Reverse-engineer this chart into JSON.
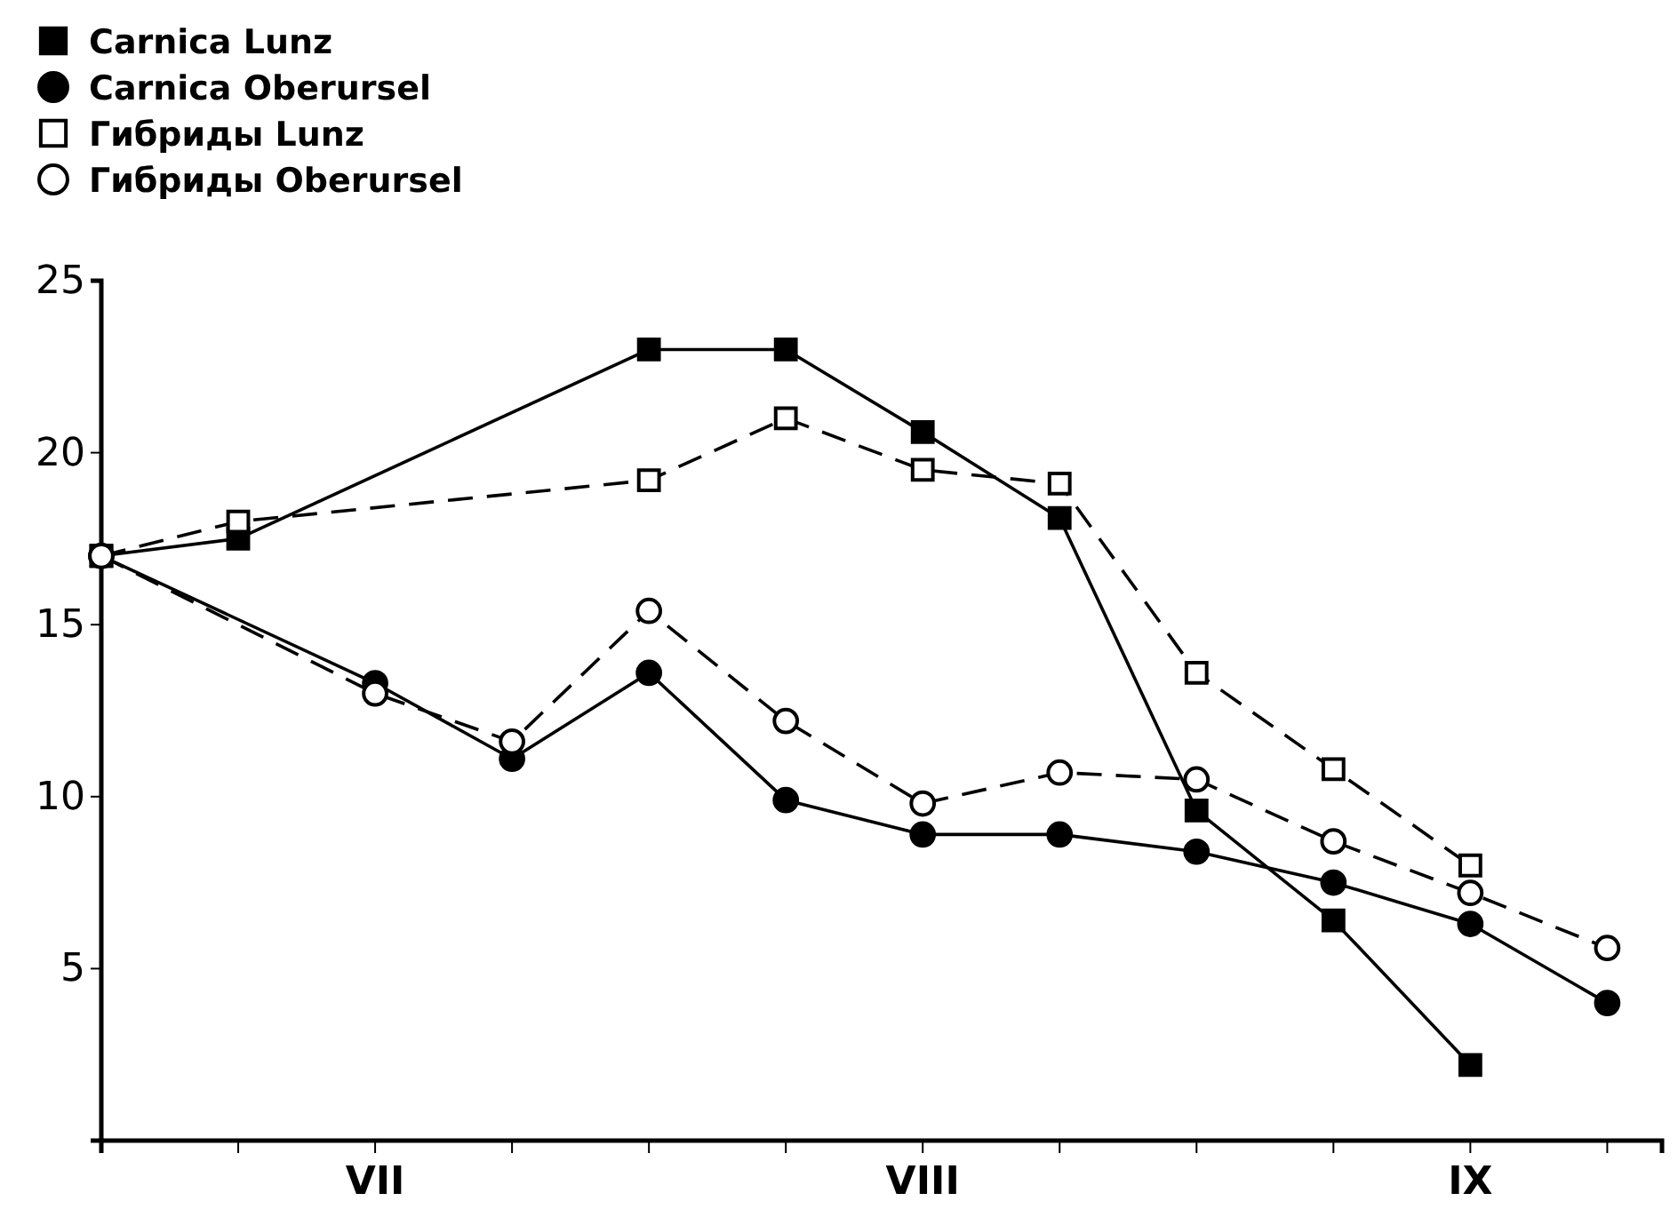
{
  "chart_data": {
    "type": "line",
    "categories": [
      null,
      null,
      "VII",
      null,
      null,
      null,
      "VIII",
      null,
      null,
      null,
      "IX",
      null
    ],
    "ylim": [
      0,
      25
    ],
    "yticks": [
      {
        "value": 0,
        "label": null
      },
      5,
      10,
      15,
      20,
      25
    ],
    "legend": "top left",
    "grid": false,
    "series": [
      {
        "name": "Carnica Lunz",
        "color": "#000000",
        "marker": "square",
        "line_style": "solid",
        "values": [
          17,
          17.5,
          null,
          null,
          23,
          23,
          20.6,
          18.1,
          9.6,
          6.4,
          2.2,
          null
        ]
      },
      {
        "name": "Carnica Oberursel",
        "color": "#000000",
        "marker": "circle",
        "line_style": "solid",
        "values": [
          17,
          null,
          13.3,
          11.1,
          13.6,
          9.9,
          8.9,
          8.9,
          8.4,
          7.5,
          6.3,
          4
        ]
      },
      {
        "name": "Гибриды Lunz",
        "color": "#000000",
        "marker": "square",
        "line_style": "dashed",
        "values": [
          17,
          18,
          null,
          null,
          19.2,
          21,
          19.5,
          19.1,
          13.6,
          10.8,
          8,
          null
        ]
      },
      {
        "name": "Гибриды Oberursel",
        "color": "#000000",
        "marker": "circle",
        "line_style": "dashed",
        "values": [
          17,
          null,
          13,
          11.6,
          15.4,
          12.2,
          9.8,
          10.7,
          10.5,
          8.7,
          7.2,
          5.6
        ]
      }
    ]
  }
}
